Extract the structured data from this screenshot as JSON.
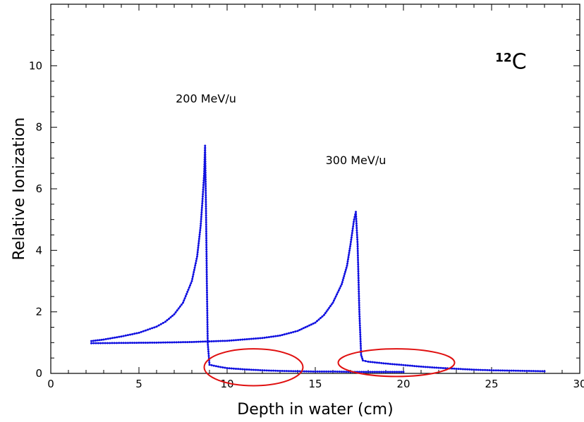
{
  "chart_data": {
    "type": "line",
    "xlabel": "Depth in water (cm)",
    "ylabel": "Relative Ionization",
    "xlim": [
      0,
      30
    ],
    "ylim": [
      0,
      12
    ],
    "x_ticks": [
      0,
      5,
      10,
      15,
      20,
      25,
      30
    ],
    "y_ticks": [
      0,
      2,
      4,
      6,
      8,
      10
    ],
    "grid": false,
    "series": [
      {
        "name": "200 MeV/u",
        "color": "#1010e0",
        "x": [
          2.3,
          3,
          4,
          5,
          6,
          6.5,
          7,
          7.5,
          8,
          8.3,
          8.5,
          8.6,
          8.7,
          8.75,
          8.8,
          8.85,
          8.9,
          9.0,
          9.5,
          10,
          11,
          12,
          13,
          14,
          15,
          16,
          17,
          18,
          19,
          20
        ],
        "y": [
          1.05,
          1.1,
          1.2,
          1.32,
          1.52,
          1.68,
          1.92,
          2.3,
          3.0,
          3.8,
          4.8,
          5.6,
          6.5,
          7.4,
          5.5,
          3.0,
          1.0,
          0.28,
          0.22,
          0.17,
          0.13,
          0.1,
          0.08,
          0.07,
          0.06,
          0.06,
          0.05,
          0.05,
          0.05,
          0.05
        ]
      },
      {
        "name": "300 MeV/u",
        "color": "#1010e0",
        "x": [
          2.3,
          4,
          6,
          8,
          10,
          12,
          13,
          14,
          15,
          15.5,
          16,
          16.5,
          16.8,
          17.0,
          17.2,
          17.3,
          17.4,
          17.5,
          17.6,
          17.7,
          18,
          19,
          20,
          21,
          22,
          23,
          24,
          25,
          26,
          27,
          28
        ],
        "y": [
          0.98,
          0.99,
          1.0,
          1.02,
          1.06,
          1.15,
          1.23,
          1.38,
          1.65,
          1.9,
          2.3,
          2.9,
          3.5,
          4.2,
          5.0,
          5.25,
          4.2,
          2.0,
          0.6,
          0.42,
          0.38,
          0.32,
          0.27,
          0.22,
          0.18,
          0.15,
          0.12,
          0.1,
          0.09,
          0.08,
          0.07
        ]
      }
    ],
    "annotations": [
      {
        "text": "200 MeV/u",
        "x": 8.8,
        "y": 8.8
      },
      {
        "text": "300 MeV/u",
        "x": 17.3,
        "y": 6.8
      },
      {
        "text_sup": "12",
        "text_main": "C",
        "x": 25.2,
        "y": 9.9
      }
    ],
    "highlight_ellipses": [
      {
        "cx": 11.5,
        "cy": 0.2,
        "rx": 2.8,
        "ry": 0.6,
        "color": "#e01010"
      },
      {
        "cx": 19.6,
        "cy": 0.35,
        "rx": 3.3,
        "ry": 0.45,
        "color": "#e01010"
      }
    ]
  }
}
